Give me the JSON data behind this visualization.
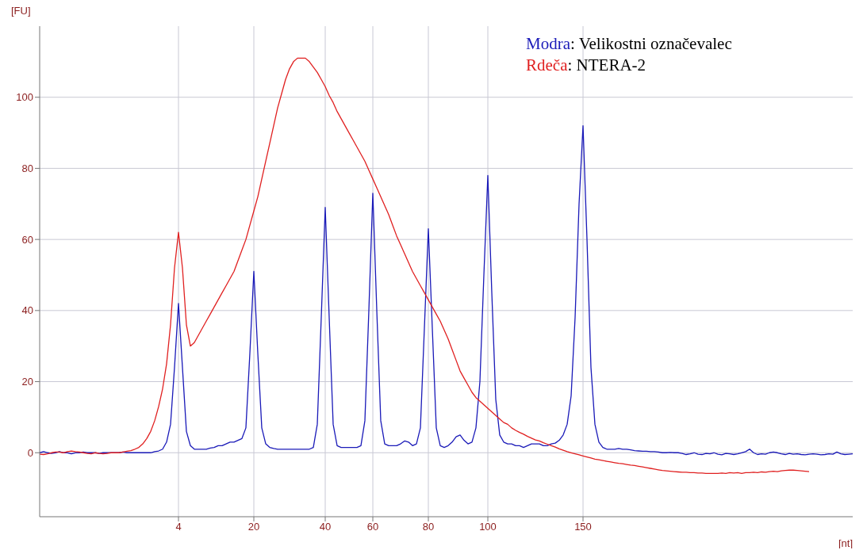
{
  "chart_data": {
    "type": "line",
    "xlabel": "[nt]",
    "ylabel": "[FU]",
    "ylim": [
      -18,
      120
    ],
    "categories": [
      null,
      null,
      null,
      null,
      null,
      null,
      null,
      null,
      null,
      null,
      null,
      null,
      null,
      null,
      null,
      null,
      null,
      null,
      null,
      null,
      null,
      null,
      null,
      null,
      null,
      null,
      null,
      null,
      null,
      null,
      null,
      null,
      null,
      null,
      null,
      "4",
      null,
      null,
      null,
      null,
      null,
      null,
      null,
      null,
      null,
      null,
      null,
      null,
      null,
      null,
      null,
      null,
      null,
      null,
      "20",
      null,
      null,
      null,
      null,
      null,
      null,
      null,
      null,
      null,
      null,
      null,
      null,
      null,
      null,
      null,
      null,
      null,
      "40",
      null,
      null,
      null,
      null,
      null,
      null,
      null,
      null,
      null,
      null,
      null,
      "60",
      null,
      null,
      null,
      null,
      null,
      null,
      null,
      null,
      null,
      null,
      null,
      null,
      null,
      "80",
      null,
      null,
      null,
      null,
      null,
      null,
      null,
      null,
      null,
      null,
      null,
      null,
      null,
      null,
      "100",
      null,
      null,
      null,
      null,
      null,
      null,
      null,
      null,
      null,
      null,
      null,
      null,
      null,
      null,
      null,
      null,
      null,
      null,
      null,
      null,
      null,
      null,
      null,
      "150",
      null,
      null,
      null,
      null,
      null,
      null,
      null,
      null,
      null,
      null,
      null,
      null,
      null,
      null,
      null,
      null,
      null,
      null,
      null,
      null,
      null,
      null,
      null,
      null,
      null,
      null,
      null,
      null,
      null,
      null,
      null,
      null,
      null,
      null,
      null,
      null,
      null,
      null,
      null,
      null,
      null,
      null,
      null,
      null,
      null,
      null,
      null,
      null,
      null,
      null,
      null,
      null,
      null,
      null,
      null,
      null,
      null,
      null,
      null,
      null,
      null,
      null,
      null,
      null,
      null,
      null,
      null,
      null
    ],
    "yticks": [
      0,
      20,
      40,
      60,
      80,
      100
    ],
    "grid": true,
    "legend": "top right",
    "marker": "none",
    "line_style": "solid",
    "series": [
      {
        "name": "Modra: Velikostni označevalec",
        "color": "#1a1ab8",
        "values": [
          0,
          0.3,
          0,
          -0.2,
          0,
          0.3,
          0,
          0,
          -0.3,
          0,
          0,
          0.2,
          0,
          0,
          0,
          -0.2,
          0,
          0,
          0,
          0,
          0,
          0.2,
          0,
          0,
          0,
          0,
          0,
          0,
          0,
          0.3,
          0.5,
          1,
          3,
          8,
          24,
          42,
          24,
          6,
          2,
          1,
          1,
          1,
          1,
          1.3,
          1.5,
          2,
          2,
          2.5,
          3,
          3,
          3.5,
          4,
          7,
          28,
          51,
          28,
          7,
          2.5,
          1.5,
          1.2,
          1,
          1,
          1,
          1,
          1,
          1,
          1,
          1,
          1,
          1.5,
          8,
          38,
          69,
          38,
          8,
          2,
          1.5,
          1.5,
          1.5,
          1.5,
          1.5,
          2,
          9,
          40,
          73,
          40,
          9,
          2.5,
          2,
          2,
          2,
          2.5,
          3.3,
          3,
          2,
          2.5,
          7,
          35,
          63,
          35,
          7,
          2,
          1.5,
          2,
          3,
          4.5,
          5,
          3.5,
          2.5,
          3,
          7,
          20,
          50,
          78,
          45,
          15,
          5,
          3,
          2.5,
          2.5,
          2,
          2,
          1.5,
          2,
          2.5,
          2.5,
          2.5,
          2,
          2,
          2.5,
          2.7,
          3.5,
          5,
          8,
          16,
          38,
          70,
          92,
          60,
          24,
          8,
          3,
          1.5,
          1,
          1,
          1,
          1.2,
          1,
          1,
          0.8,
          0.6,
          0.5,
          0.4,
          0.4,
          0.3,
          0.3,
          0.2,
          0,
          0,
          0.1,
          0,
          0,
          -0.2,
          -0.5,
          -0.3,
          0,
          -0.4,
          -0.5,
          -0.2,
          -0.3,
          0,
          -0.4,
          -0.6,
          -0.2,
          -0.3,
          -0.5,
          -0.3,
          0,
          0.3,
          1,
          0,
          -0.5,
          -0.3,
          -0.4,
          0,
          0.2,
          0,
          -0.3,
          -0.5,
          -0.2,
          -0.4,
          -0.3,
          -0.5,
          -0.6,
          -0.4,
          -0.3,
          -0.4,
          -0.6,
          -0.5,
          -0.3,
          -0.4,
          0.2,
          -0.3,
          -0.5,
          -0.4,
          -0.3
        ]
      },
      {
        "name": "Rdeča: NTERA-2",
        "color": "#e02020",
        "values": [
          -0.4,
          -0.5,
          -0.3,
          0,
          0.2,
          0.2,
          0,
          0.3,
          0.5,
          0.3,
          0.2,
          0,
          -0.2,
          -0.3,
          0,
          -0.2,
          -0.3,
          -0.2,
          0,
          0,
          0,
          0.2,
          0.4,
          0.6,
          1,
          1.5,
          2.5,
          4,
          6,
          9,
          13,
          18,
          25,
          36,
          52,
          62,
          52,
          36,
          30,
          31,
          33,
          35,
          37,
          39,
          41,
          43,
          45,
          47,
          49,
          51,
          54,
          57,
          60,
          64,
          68,
          72,
          77,
          82,
          87,
          92,
          97,
          101,
          105,
          108,
          110,
          111,
          111,
          111,
          110,
          108.5,
          107,
          105,
          103,
          100.5,
          98.5,
          96,
          94,
          92,
          90,
          88,
          86,
          84,
          82,
          79.5,
          77,
          74.5,
          72,
          69.5,
          67,
          64,
          61,
          58.5,
          56,
          53.5,
          51,
          49,
          47,
          45,
          43,
          41,
          39,
          37,
          34.5,
          32,
          29,
          26,
          23,
          21,
          19,
          17,
          15.5,
          14.5,
          13.5,
          12.5,
          11.5,
          10.5,
          9.5,
          8.5,
          8,
          7,
          6.3,
          5.7,
          5.2,
          4.6,
          4.1,
          3.6,
          3.3,
          2.8,
          2.4,
          2,
          1.6,
          1.1,
          0.7,
          0.3,
          0,
          -0.3,
          -0.6,
          -0.9,
          -1.2,
          -1.5,
          -1.8,
          -2,
          -2.2,
          -2.4,
          -2.6,
          -2.8,
          -3,
          -3.1,
          -3.3,
          -3.5,
          -3.6,
          -3.8,
          -4,
          -4.2,
          -4.4,
          -4.6,
          -4.8,
          -5,
          -5.1,
          -5.2,
          -5.3,
          -5.4,
          -5.5,
          -5.5,
          -5.6,
          -5.6,
          -5.7,
          -5.7,
          -5.8,
          -5.8,
          -5.8,
          -5.8,
          -5.7,
          -5.8,
          -5.6,
          -5.7,
          -5.6,
          -5.8,
          -5.6,
          -5.6,
          -5.5,
          -5.6,
          -5.4,
          -5.5,
          -5.3,
          -5.2,
          -5.3,
          -5.1,
          -5.0,
          -4.9,
          -4.9,
          -5.0,
          -5.1,
          -5.2,
          -5.3,
          null,
          null,
          null,
          null,
          null,
          null,
          null,
          null,
          null,
          null,
          null
        ]
      }
    ]
  }
}
